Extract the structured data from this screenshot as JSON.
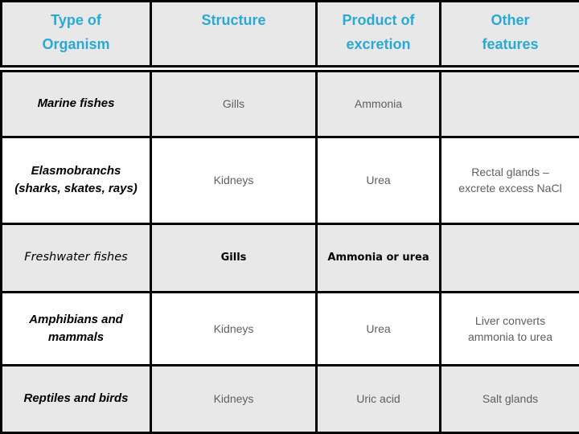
{
  "colors": {
    "header_text": "#29a9d6",
    "row_shade": "#e8e8e8",
    "row_white": "#ffffff",
    "body_text": "#5f5f5f",
    "border": "#000000"
  },
  "table": {
    "columns": [
      {
        "label": "Type of\nOrganism"
      },
      {
        "label": "Structure"
      },
      {
        "label": "Product of\nexcretion"
      },
      {
        "label": "Other\nfeatures"
      }
    ],
    "rows": [
      {
        "organism": "Marine fishes",
        "structure": "Gills",
        "product": "Ammonia",
        "other": ""
      },
      {
        "organism": "Elasmobranchs\n(sharks, skates, rays)",
        "structure": "Kidneys",
        "product": "Urea",
        "other": "Rectal glands –\nexcrete excess NaCl"
      },
      {
        "organism": "Freshwater fishes",
        "structure": "Gills",
        "product": "Ammonia or urea",
        "other": ""
      },
      {
        "organism": "Amphibians and\nmammals",
        "structure": "Kidneys",
        "product": "Urea",
        "other": "Liver converts\nammonia to urea"
      },
      {
        "organism": "Reptiles and birds",
        "structure": "Kidneys",
        "product": "Uric acid",
        "other": "Salt glands"
      }
    ]
  }
}
